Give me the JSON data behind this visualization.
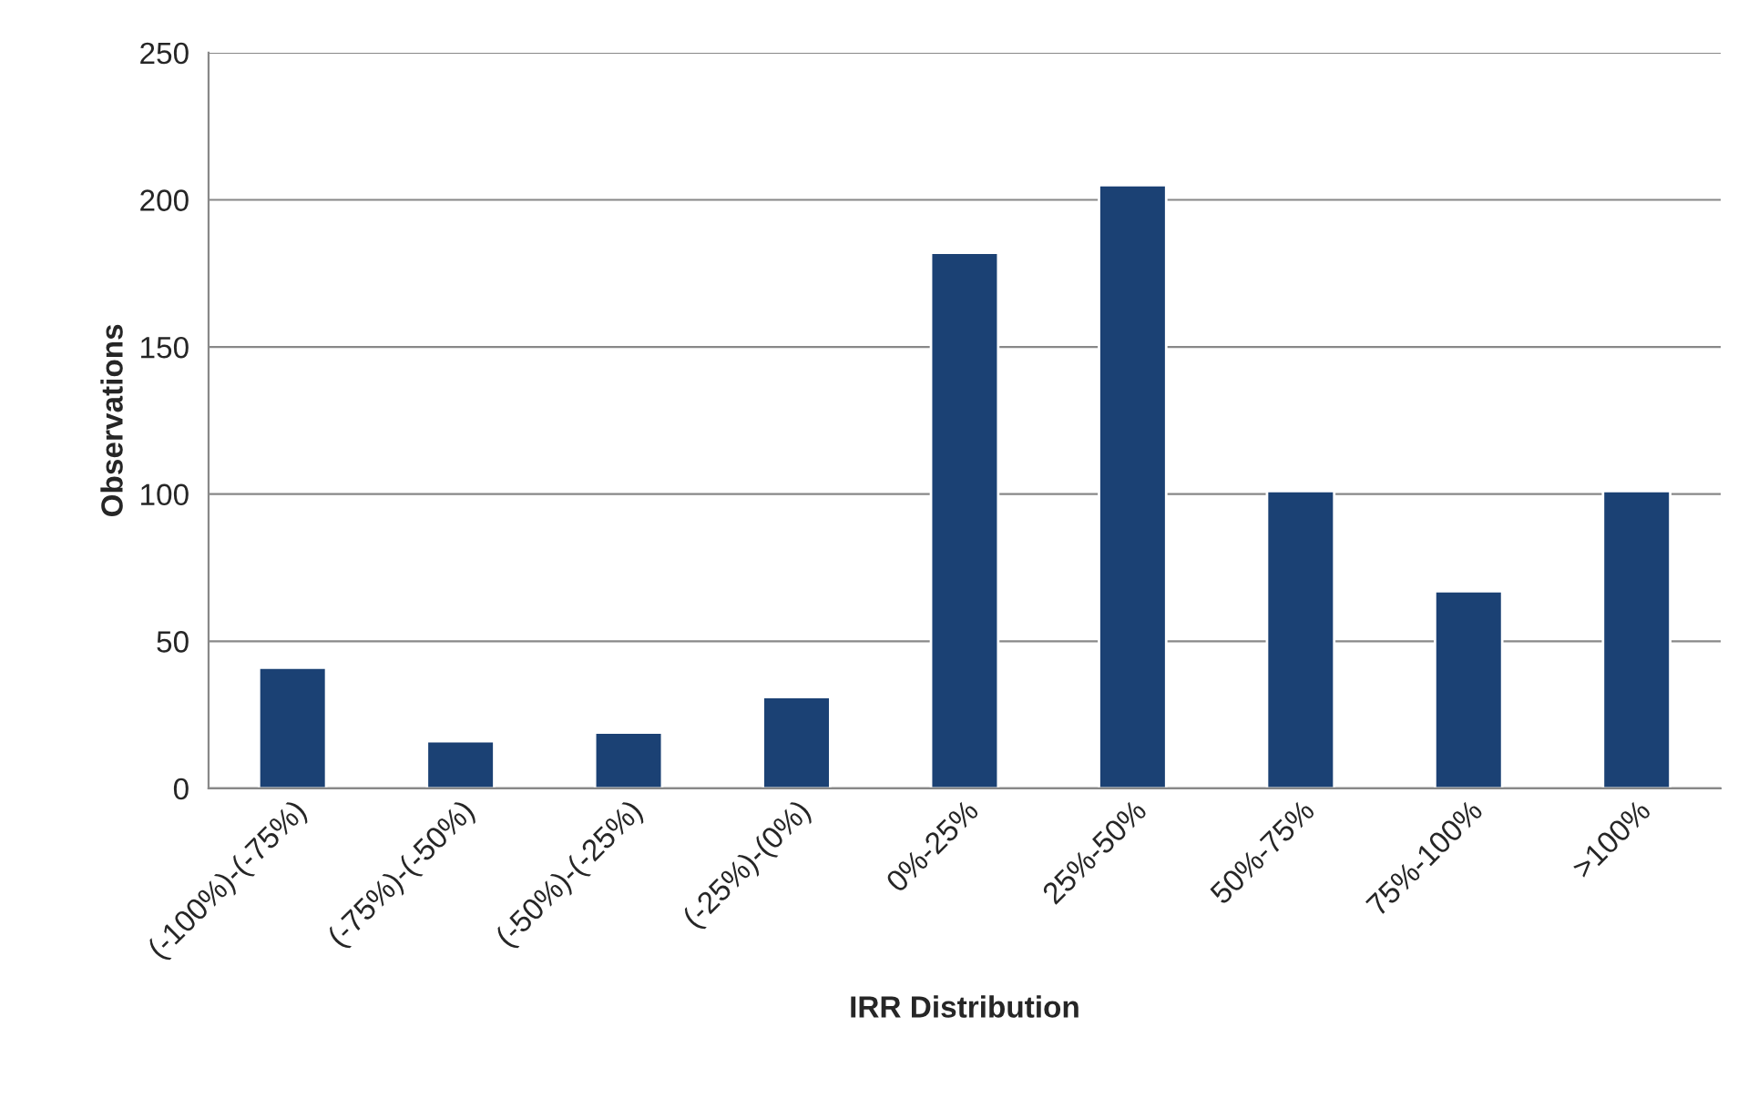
{
  "chart_data": {
    "type": "bar",
    "xlabel": "IRR Distribution",
    "ylabel": "Observations",
    "categories": [
      "(-100%)-(-75%)",
      "(-75%)-(-50%)",
      "(-50%)-(-25%)",
      "(-25%)-(0%)",
      "0%-25%",
      "25%-50%",
      "50%-75%",
      "75%-100%",
      ">100%"
    ],
    "values": [
      41,
      16,
      19,
      31,
      182,
      205,
      101,
      67,
      101
    ],
    "color": "#1b4174",
    "ylim": [
      0,
      250
    ],
    "yticks": [
      0,
      50,
      100,
      150,
      200,
      250
    ],
    "grid": "y",
    "legend": false
  }
}
